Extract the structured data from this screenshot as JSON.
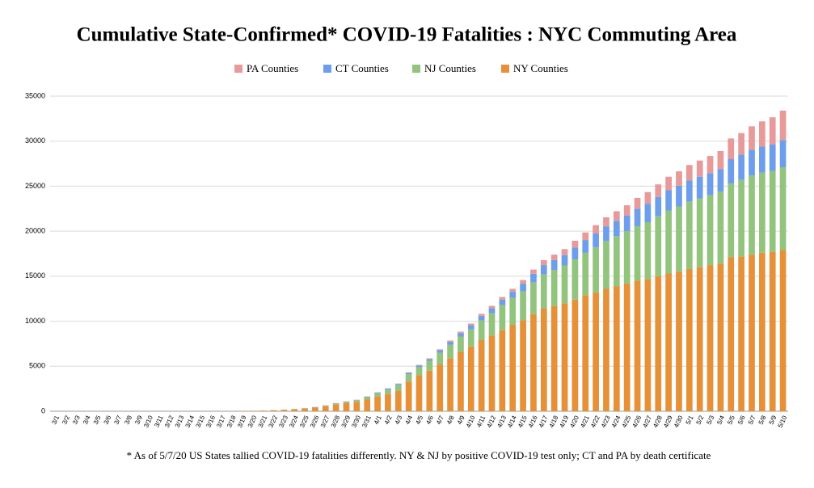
{
  "chart_data": {
    "type": "stacked_bar",
    "title": "Cumulative State-Confirmed* COVID-19 Fatalities : NYC Commuting Area",
    "footnote": "* As of 5/7/20 US States tallied COVID-19 fatalities differently. NY & NJ by positive COVID-19 test only; CT and PA by death certificate",
    "categories": [
      "3/1",
      "3/2",
      "3/3",
      "3/4",
      "3/5",
      "3/6",
      "3/7",
      "3/8",
      "3/9",
      "3/10",
      "3/11",
      "3/12",
      "3/13",
      "3/14",
      "3/15",
      "3/16",
      "3/17",
      "3/18",
      "3/19",
      "3/20",
      "3/21",
      "3/22",
      "3/23",
      "3/24",
      "3/25",
      "3/26",
      "3/27",
      "3/28",
      "3/29",
      "3/30",
      "3/31",
      "4/1",
      "4/2",
      "4/3",
      "4/4",
      "4/5",
      "4/6",
      "4/7",
      "4/8",
      "4/9",
      "4/10",
      "4/11",
      "4/12",
      "4/13",
      "4/14",
      "4/15",
      "4/16",
      "4/17",
      "4/18",
      "4/19",
      "4/20",
      "4/21",
      "4/22",
      "4/23",
      "4/24",
      "4/25",
      "4/26",
      "4/27",
      "4/28",
      "4/29",
      "4/30",
      "5/1",
      "5/2",
      "5/3",
      "5/4",
      "5/5",
      "5/6",
      "5/7",
      "5/8",
      "5/9",
      "5/10"
    ],
    "series": [
      {
        "name": "PA Counties",
        "color": "#e8999a",
        "values": [
          0,
          0,
          0,
          0,
          0,
          0,
          0,
          0,
          0,
          0,
          0,
          0,
          0,
          0,
          0,
          0,
          0,
          0,
          0,
          0,
          0,
          1,
          1,
          2,
          3,
          5,
          8,
          10,
          12,
          15,
          20,
          30,
          40,
          50,
          60,
          70,
          80,
          100,
          130,
          160,
          190,
          220,
          250,
          290,
          330,
          400,
          470,
          540,
          610,
          680,
          760,
          840,
          920,
          1000,
          1070,
          1130,
          1200,
          1300,
          1400,
          1500,
          1600,
          1700,
          1800,
          1900,
          2000,
          2300,
          2400,
          2600,
          2800,
          3000,
          3300
        ]
      },
      {
        "name": "CT Counties",
        "color": "#6d9eeb",
        "values": [
          0,
          0,
          0,
          0,
          0,
          0,
          0,
          0,
          0,
          0,
          0,
          0,
          0,
          0,
          0,
          0,
          0,
          0,
          0,
          0,
          1,
          2,
          3,
          5,
          10,
          15,
          20,
          30,
          35,
          40,
          70,
          85,
          110,
          130,
          165,
          190,
          205,
          280,
          330,
          380,
          450,
          500,
          560,
          600,
          670,
          870,
          970,
          1040,
          1090,
          1130,
          1330,
          1420,
          1550,
          1640,
          1700,
          1750,
          1950,
          2050,
          2150,
          2250,
          2300,
          2350,
          2400,
          2450,
          2500,
          2700,
          2800,
          2850,
          2900,
          2950,
          3000
        ]
      },
      {
        "name": "NJ Counties",
        "color": "#93c47d",
        "values": [
          0,
          0,
          0,
          0,
          0,
          0,
          0,
          0,
          0,
          0,
          0,
          0,
          0,
          0,
          1,
          2,
          3,
          4,
          5,
          8,
          10,
          15,
          20,
          30,
          45,
          60,
          85,
          120,
          150,
          180,
          260,
          350,
          500,
          650,
          800,
          900,
          1100,
          1300,
          1500,
          1700,
          1900,
          2200,
          2500,
          2800,
          3000,
          3200,
          3500,
          3800,
          4000,
          4200,
          4450,
          4700,
          5000,
          5300,
          5550,
          5800,
          6050,
          6300,
          6650,
          7000,
          7250,
          7500,
          7650,
          7800,
          8000,
          8200,
          8500,
          8800,
          8900,
          9000,
          9200
        ]
      },
      {
        "name": "NY Counties",
        "color": "#e69138",
        "values": [
          0,
          0,
          0,
          0,
          0,
          0,
          0,
          0,
          0,
          0,
          0,
          0,
          0,
          2,
          5,
          10,
          15,
          25,
          35,
          50,
          70,
          110,
          160,
          220,
          300,
          400,
          550,
          750,
          900,
          1050,
          1300,
          1650,
          1900,
          2250,
          3300,
          4000,
          4500,
          5200,
          5900,
          6600,
          7200,
          7900,
          8400,
          9000,
          9600,
          10100,
          10800,
          11400,
          11700,
          12000,
          12400,
          12900,
          13200,
          13600,
          13900,
          14200,
          14500,
          14700,
          15000,
          15300,
          15500,
          15800,
          16000,
          16200,
          16400,
          17100,
          17200,
          17400,
          17600,
          17700,
          17900
        ]
      }
    ],
    "ylim": [
      0,
      35000
    ],
    "yticks": [
      0,
      5000,
      10000,
      15000,
      20000,
      25000,
      30000,
      35000
    ],
    "grid": true,
    "legend": "top"
  }
}
